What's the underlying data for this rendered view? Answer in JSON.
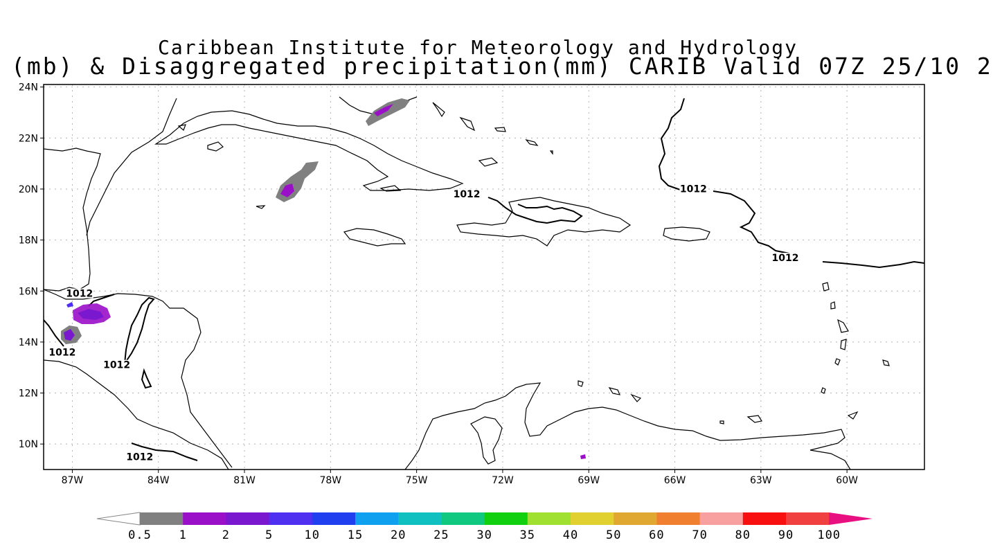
{
  "title_line1": "Caribbean Institute for Meteorology and Hydrology",
  "title_line2": "(mb) & Disaggregated precipitation(mm) CARIB Valid 07Z 25/10 2",
  "lat_labels": [
    "24N",
    "22N",
    "20N",
    "18N",
    "16N",
    "14N",
    "12N",
    "10N"
  ],
  "lat_values": [
    24,
    22,
    20,
    18,
    16,
    14,
    12,
    10
  ],
  "lon_labels": [
    "87W",
    "84W",
    "81W",
    "78W",
    "75W",
    "72W",
    "69W",
    "66W",
    "63W",
    "60W"
  ],
  "lon_values": [
    -87,
    -84,
    -81,
    -78,
    -75,
    -72,
    -69,
    -66,
    -63,
    -60
  ],
  "extent": {
    "lon_min": -88.0,
    "lon_max": -57.3,
    "lat_min": 9.0,
    "lat_max": 24.1
  },
  "contour_labels": [
    {
      "text": "1012",
      "lon": -86.8,
      "lat": 15.8
    },
    {
      "text": "1012",
      "lon": -87.4,
      "lat": 13.5
    },
    {
      "text": "1012",
      "lon": -85.5,
      "lat": 13.0
    },
    {
      "text": "1012",
      "lon": -84.7,
      "lat": 9.4
    },
    {
      "text": "1012",
      "lon": -73.3,
      "lat": 19.7
    },
    {
      "text": "1012",
      "lon": -65.4,
      "lat": 19.9
    },
    {
      "text": "1012",
      "lon": -62.2,
      "lat": 17.2
    }
  ],
  "colorbar": {
    "labels": [
      "0.5",
      "1",
      "2",
      "5",
      "10",
      "15",
      "20",
      "25",
      "30",
      "35",
      "40",
      "50",
      "60",
      "70",
      "80",
      "90",
      "100"
    ],
    "colors": [
      "#808080",
      "#9a10c8",
      "#7a18d0",
      "#5030f0",
      "#2040f0",
      "#10a0f0",
      "#10c0c0",
      "#10c880",
      "#10d010",
      "#a0e030",
      "#e0d030",
      "#e0a830",
      "#f08030",
      "#f8a0a0",
      "#f81010",
      "#f04040"
    ],
    "under_color": "#ffffff",
    "over_color": "#e81080"
  },
  "colors": {
    "coast": "#000000",
    "contour": "#000000",
    "grid": "#b0b0b0",
    "precip_low": "#808080",
    "precip_mid": "#9a10c8",
    "precip_high": "#5030f0"
  }
}
